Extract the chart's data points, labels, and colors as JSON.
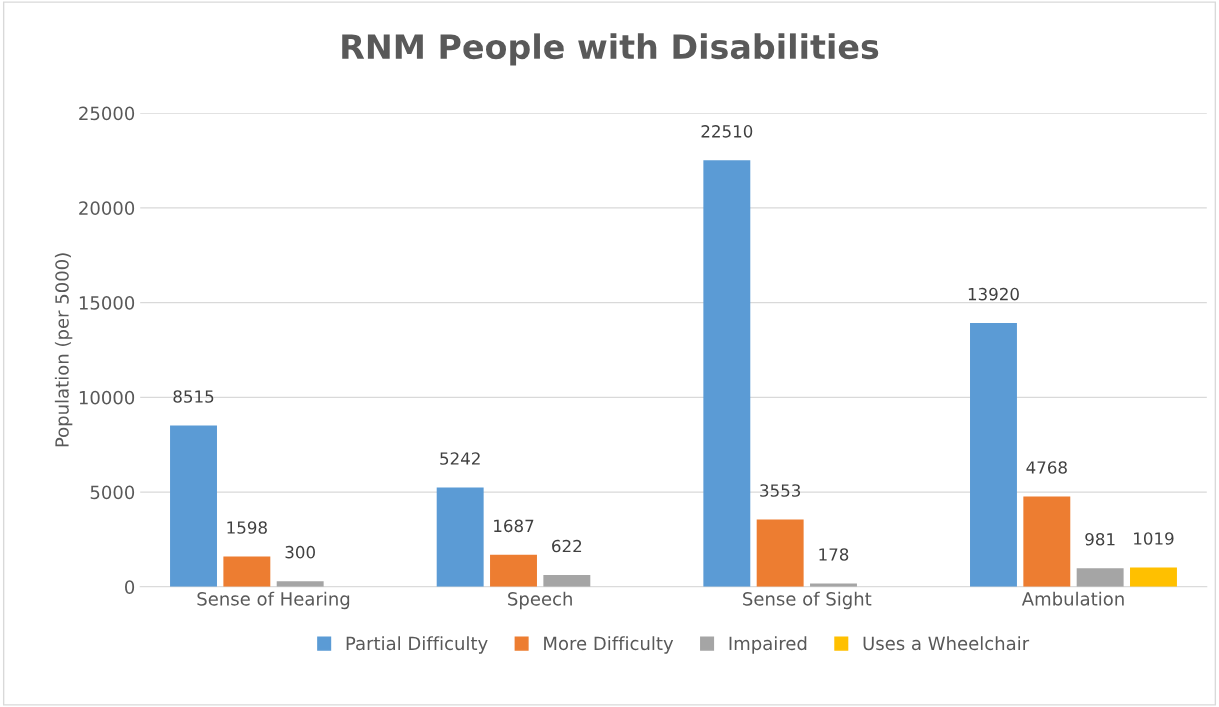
{
  "chart_data": {
    "type": "bar",
    "title": "RNM People with Disabilities",
    "ylabel": "Population (per 5000)",
    "categories": [
      "Sense of Hearing",
      "Speech",
      "Sense of Sight",
      "Ambulation"
    ],
    "series": [
      {
        "name": "Partial Difficulty",
        "color": "#5b9bd5",
        "values": [
          8515,
          5242,
          22510,
          13920
        ]
      },
      {
        "name": "More Difficulty",
        "color": "#ed7d31",
        "values": [
          1598,
          1687,
          3553,
          4768
        ]
      },
      {
        "name": "Impaired",
        "color": "#a5a5a5",
        "values": [
          300,
          622,
          178,
          981
        ]
      },
      {
        "name": "Uses a Wheelchair",
        "color": "#ffc000",
        "values": [
          null,
          null,
          null,
          1019
        ]
      }
    ],
    "ylim": [
      0,
      25000
    ],
    "yticks": [
      0,
      5000,
      10000,
      15000,
      20000,
      25000
    ],
    "grid": "y",
    "legend": "bottom",
    "data_labels": true
  }
}
